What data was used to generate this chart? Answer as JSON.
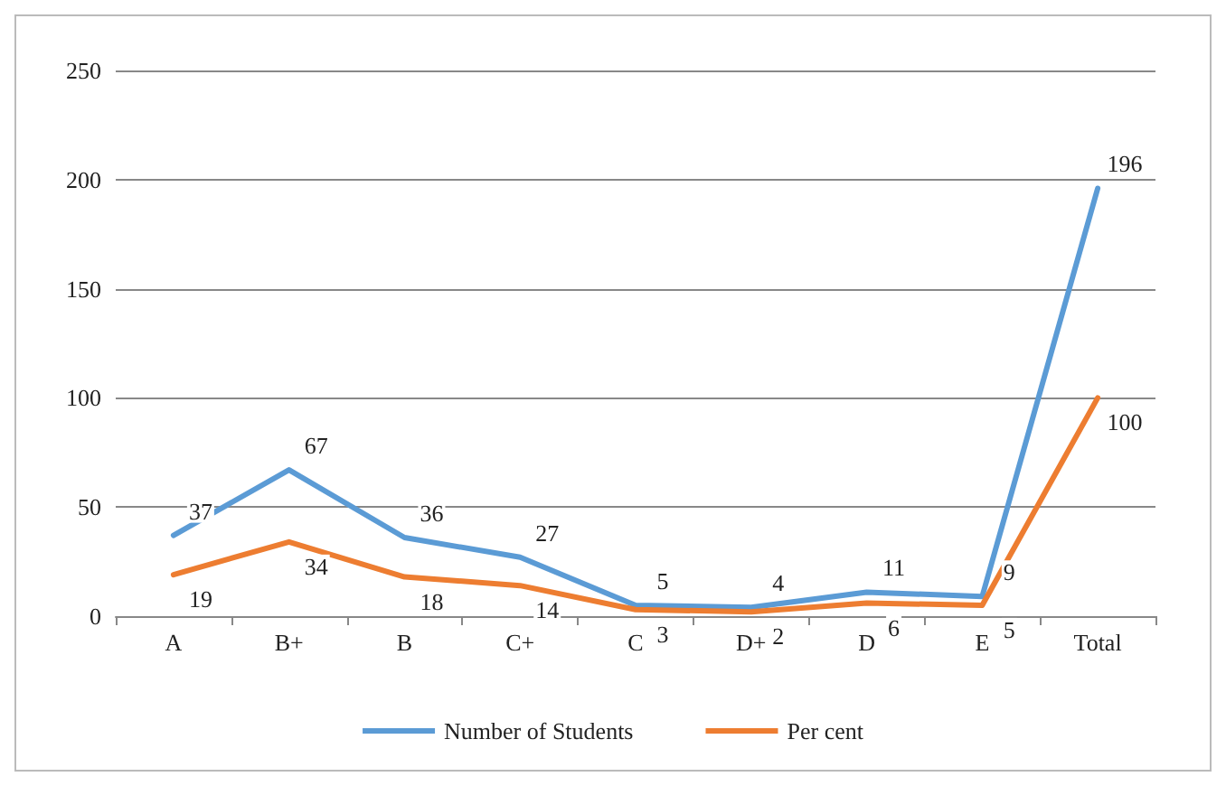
{
  "chart_data": {
    "type": "line",
    "categories": [
      "A",
      "B+",
      "B",
      "C+",
      "C",
      "D+",
      "D",
      "E",
      "Total"
    ],
    "series": [
      {
        "name": "Number of Students",
        "color": "#5b9bd5",
        "values": [
          37,
          67,
          36,
          27,
          5,
          4,
          11,
          9,
          196
        ]
      },
      {
        "name": "Per cent",
        "color": "#ed7d31",
        "values": [
          19,
          34,
          18,
          14,
          3,
          2,
          6,
          5,
          100
        ]
      }
    ],
    "ylim": [
      0,
      250
    ],
    "yticks": [
      0,
      50,
      100,
      150,
      200,
      250
    ],
    "grid": "y",
    "legend": "bottom",
    "data_labels": true,
    "marker": "none",
    "line_style": "solid"
  }
}
